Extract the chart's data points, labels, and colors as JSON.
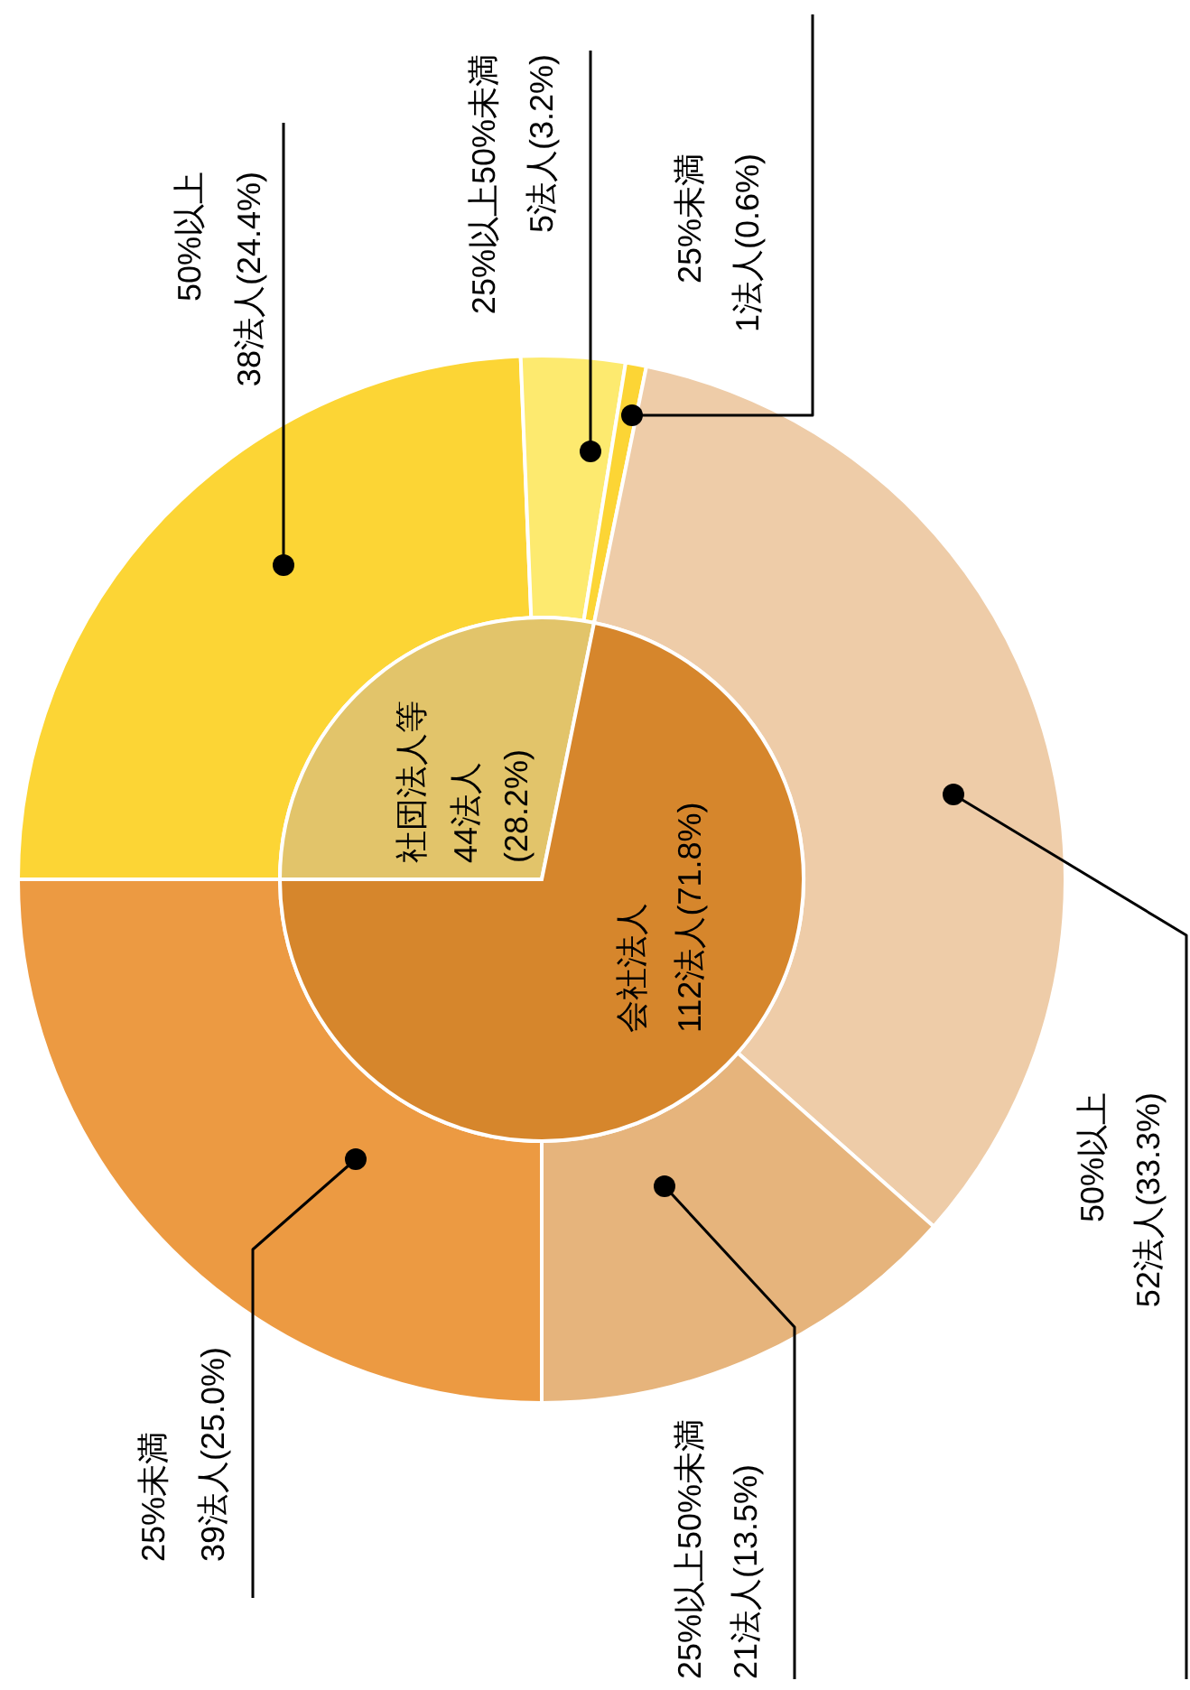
{
  "chart_data": [
    {
      "type": "pie",
      "categories": [
        "社団法人等",
        "会社法人"
      ],
      "values": [
        44,
        112
      ],
      "colors": [
        "#e2c46a",
        "#d6862c"
      ],
      "value_labels": [
        "44法人\n(28.2%)",
        "112法人(71.8%)"
      ]
    },
    {
      "type": "donut",
      "categories": [
        "50%以上",
        "25%以上50%未満",
        "25%未満",
        "50%以上",
        "25%以上50%未満",
        "25%未満"
      ],
      "values": [
        38,
        5,
        1,
        52,
        21,
        39
      ],
      "colors": [
        "#fcd535",
        "#fdea6f",
        "#fcd535",
        "#eecca8",
        "#e6b47c",
        "#ec9a42"
      ],
      "value_labels": [
        "38法人(24.4%)",
        "5法人(3.2%)",
        "1法人(0.6%)",
        "52法人(33.3%)",
        "21法人(13.5%)",
        "39法人(25.0%)"
      ]
    }
  ]
}
